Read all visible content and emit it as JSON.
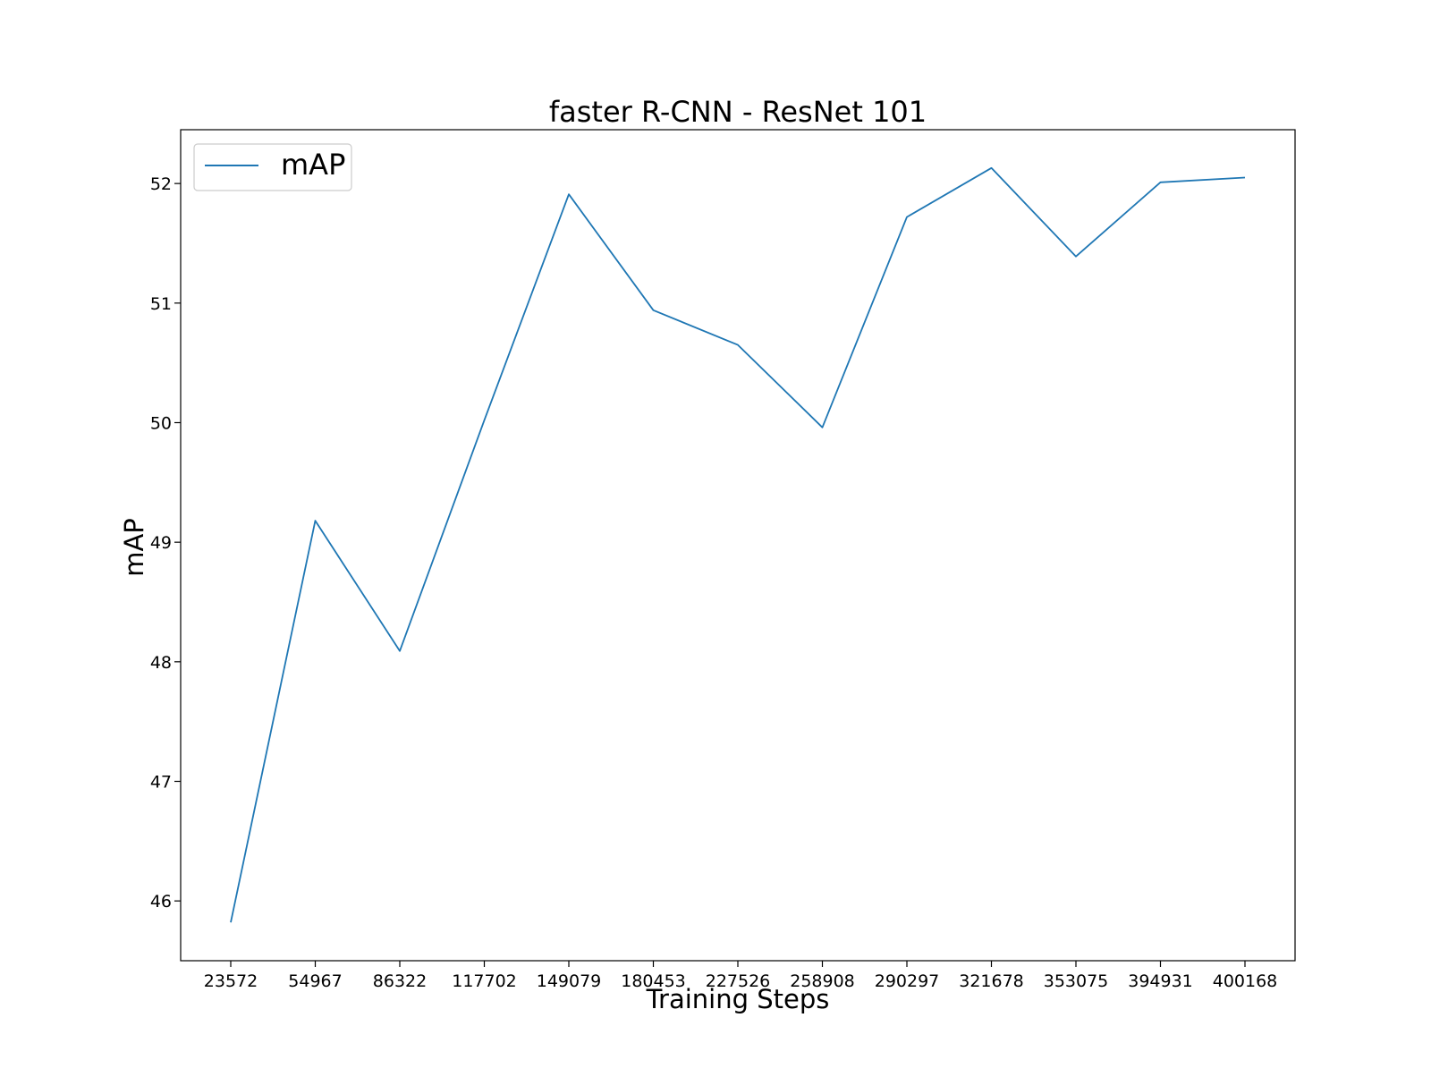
{
  "chart_data": {
    "type": "line",
    "title": "faster R-CNN - ResNet 101",
    "xlabel": "Training Steps",
    "ylabel": "mAP",
    "x_is_categorical": true,
    "categories": [
      "23572",
      "54967",
      "86322",
      "117702",
      "149079",
      "180453",
      "227526",
      "258908",
      "290297",
      "321678",
      "353075",
      "394931",
      "400168"
    ],
    "series": [
      {
        "name": "mAP",
        "color": "#1f77b4",
        "values": [
          45.82,
          49.18,
          48.09,
          50.02,
          51.91,
          50.94,
          50.65,
          49.96,
          51.72,
          52.13,
          51.39,
          52.01,
          52.05
        ]
      }
    ],
    "ylim": [
      45.5,
      52.45
    ],
    "yticks": [
      46,
      47,
      48,
      49,
      50,
      51,
      52
    ],
    "grid": false,
    "legend": "upper-left"
  }
}
